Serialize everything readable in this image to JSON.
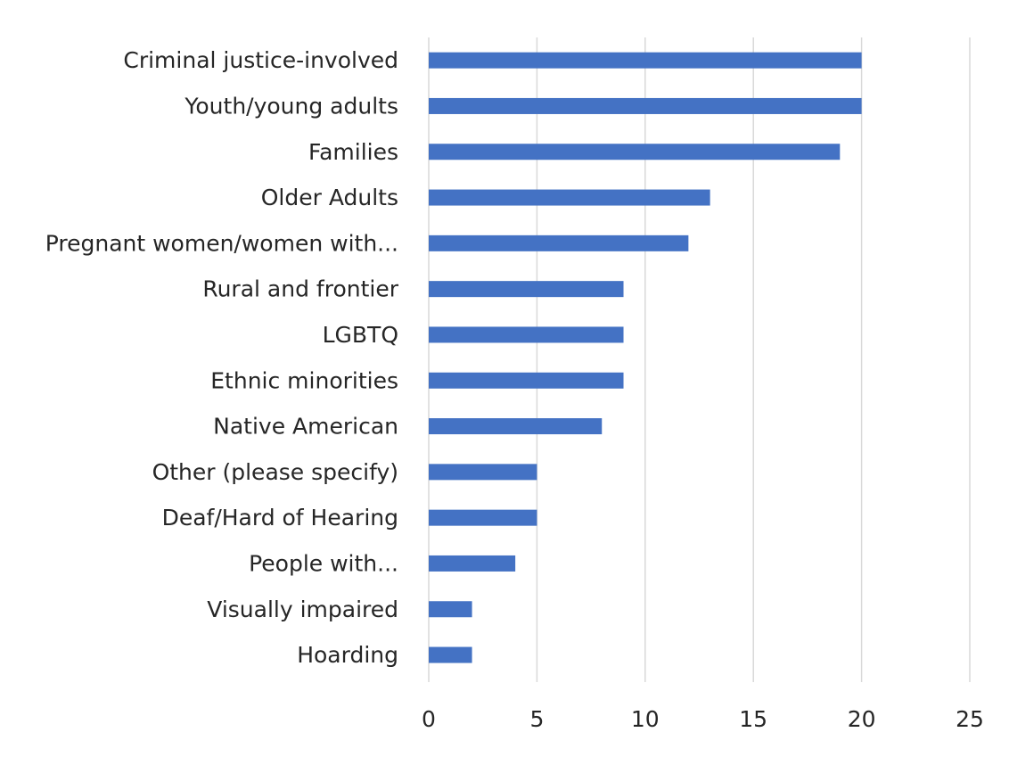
{
  "chart_data": {
    "type": "bar",
    "orientation": "horizontal",
    "title": "",
    "xlabel": "",
    "ylabel": "",
    "categories": [
      "Criminal justice-involved",
      "Youth/young adults",
      "Families",
      "Older Adults",
      "Pregnant women/women with...",
      "Rural and frontier",
      "LGBTQ",
      "Ethnic minorities",
      "Native American",
      "Other (please specify)",
      "Deaf/Hard of Hearing",
      "People with...",
      "Visually impaired",
      "Hoarding"
    ],
    "values": [
      20,
      20,
      19,
      13,
      12,
      9,
      9,
      9,
      8,
      5,
      5,
      4,
      2,
      2
    ],
    "xlim": [
      0,
      25
    ],
    "xticks": [
      "0",
      "5",
      "10",
      "15",
      "20",
      "25"
    ],
    "grid": "vertical",
    "legend": "none",
    "bar_color": "#4472c4",
    "grid_color": "#d9d9d9"
  }
}
